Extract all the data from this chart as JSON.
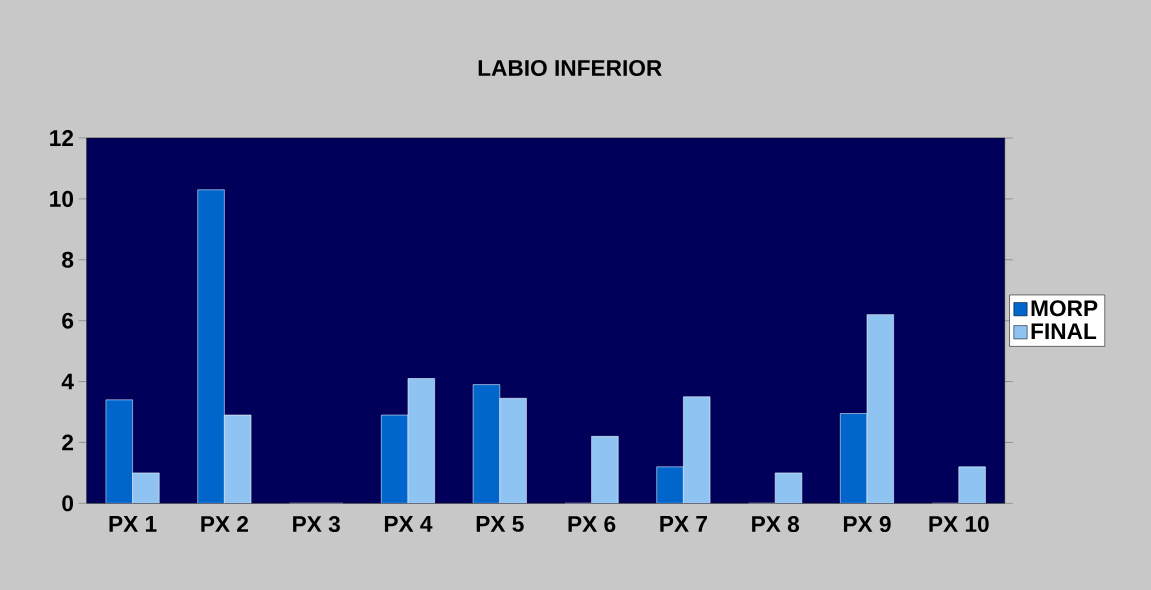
{
  "chart_data": {
    "type": "bar",
    "title": "LABIO INFERIOR",
    "categories": [
      "PX 1",
      "PX 2",
      "PX 3",
      "PX 4",
      "PX 5",
      "PX 6",
      "PX 7",
      "PX 8",
      "PX 9",
      "PX 10"
    ],
    "series": [
      {
        "name": "MORP",
        "color": "#0066cc",
        "values": [
          3.4,
          10.3,
          0,
          2.9,
          3.9,
          0,
          1.2,
          0,
          2.95,
          0
        ]
      },
      {
        "name": "FINAL",
        "color": "#8ec3f2",
        "values": [
          1.0,
          2.9,
          0,
          4.1,
          3.45,
          2.2,
          3.5,
          1.0,
          6.2,
          1.2
        ]
      }
    ],
    "ylim": [
      0,
      12
    ],
    "yticks": [
      0,
      2,
      4,
      6,
      8,
      10,
      12
    ],
    "grid": false,
    "legend": "right"
  }
}
